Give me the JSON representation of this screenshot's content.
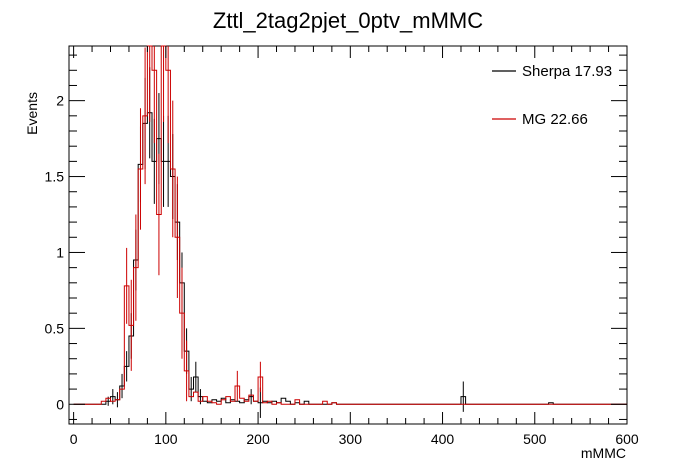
{
  "chart_data": {
    "type": "line",
    "title": "Zttl_2tag2pjet_0ptv_mMMC",
    "xlabel": "mMMC",
    "ylabel": "Events",
    "xlim": [
      -5,
      600
    ],
    "ylim": [
      -0.13,
      2.36
    ],
    "xticks": [
      0,
      100,
      200,
      300,
      400,
      500,
      600
    ],
    "yticks": [
      0,
      0.5,
      1,
      1.5,
      2
    ],
    "xtick_labels": [
      "0",
      "100",
      "200",
      "300",
      "400",
      "500",
      "600"
    ],
    "ytick_labels": [
      "0",
      "0.5",
      "1",
      "1.5",
      "2"
    ],
    "bin_width": 5,
    "legend_position": "top-right",
    "series": [
      {
        "name": "Sherpa 17.93",
        "color": "#000000",
        "bins": [
          [
            35,
            0.02
          ],
          [
            40,
            0.05
          ],
          [
            45,
            0.03
          ],
          [
            50,
            0.12
          ],
          [
            55,
            0.25
          ],
          [
            60,
            0.45
          ],
          [
            65,
            0.95
          ],
          [
            70,
            1.58
          ],
          [
            75,
            1.85
          ],
          [
            80,
            1.92
          ],
          [
            85,
            1.6
          ],
          [
            90,
            1.75
          ],
          [
            95,
            1.6
          ],
          [
            100,
            1.6
          ],
          [
            105,
            1.5
          ],
          [
            110,
            1.2
          ],
          [
            115,
            0.8
          ],
          [
            120,
            0.35
          ],
          [
            125,
            0.1
          ],
          [
            130,
            0.18
          ],
          [
            135,
            0.05
          ],
          [
            140,
            0.02
          ],
          [
            145,
            0.01
          ],
          [
            150,
            0.03
          ],
          [
            155,
            0.02
          ],
          [
            160,
            0.04
          ],
          [
            165,
            0.01
          ],
          [
            170,
            0.03
          ],
          [
            175,
            0.02
          ],
          [
            180,
            0.01
          ],
          [
            185,
            0.03
          ],
          [
            190,
            0.05
          ],
          [
            195,
            0.02
          ],
          [
            200,
            0.01
          ],
          [
            205,
            0.02
          ],
          [
            210,
            0.01
          ],
          [
            215,
            0.02
          ],
          [
            220,
            0.01
          ],
          [
            225,
            0.04
          ],
          [
            230,
            0.02
          ],
          [
            240,
            0.01
          ],
          [
            250,
            0.02
          ],
          [
            280,
            0.01
          ],
          [
            420,
            0.05
          ],
          [
            515,
            0.01
          ]
        ],
        "errors": [
          [
            35,
            0.03
          ],
          [
            40,
            0.05
          ],
          [
            45,
            0.05
          ],
          [
            50,
            0.08
          ],
          [
            55,
            0.1
          ],
          [
            60,
            0.15
          ],
          [
            65,
            0.2
          ],
          [
            70,
            0.25
          ],
          [
            75,
            0.3
          ],
          [
            80,
            0.3
          ],
          [
            85,
            0.28
          ],
          [
            90,
            0.3
          ],
          [
            95,
            0.3
          ],
          [
            100,
            0.3
          ],
          [
            105,
            0.28
          ],
          [
            110,
            0.25
          ],
          [
            115,
            0.2
          ],
          [
            120,
            0.15
          ],
          [
            125,
            0.08
          ],
          [
            130,
            0.1
          ],
          [
            135,
            0.05
          ],
          [
            190,
            0.05
          ],
          [
            200,
            0.1
          ],
          [
            420,
            0.1
          ]
        ]
      },
      {
        "name": "MG 22.66",
        "color": "#cc0000",
        "bins": [
          [
            30,
            0.02
          ],
          [
            35,
            0.04
          ],
          [
            40,
            0.02
          ],
          [
            45,
            0.03
          ],
          [
            50,
            0.1
          ],
          [
            55,
            0.78
          ],
          [
            60,
            0.52
          ],
          [
            65,
            0.9
          ],
          [
            70,
            1.55
          ],
          [
            75,
            1.9
          ],
          [
            80,
            2.36
          ],
          [
            85,
            2.2
          ],
          [
            90,
            1.25
          ],
          [
            95,
            2.36
          ],
          [
            100,
            2.2
          ],
          [
            105,
            1.55
          ],
          [
            110,
            1.1
          ],
          [
            115,
            0.6
          ],
          [
            120,
            0.22
          ],
          [
            125,
            0.05
          ],
          [
            130,
            0.08
          ],
          [
            135,
            0.02
          ],
          [
            140,
            0.05
          ],
          [
            145,
            0.02
          ],
          [
            150,
            0.01
          ],
          [
            160,
            0.03
          ],
          [
            165,
            0.05
          ],
          [
            170,
            0.02
          ],
          [
            175,
            0.12
          ],
          [
            180,
            0.04
          ],
          [
            185,
            0.02
          ],
          [
            190,
            0.06
          ],
          [
            195,
            0.02
          ],
          [
            200,
            0.18
          ],
          [
            205,
            0.01
          ],
          [
            210,
            0.02
          ],
          [
            220,
            0.01
          ],
          [
            240,
            0.03
          ],
          [
            270,
            0.02
          ],
          [
            280,
            0.01
          ]
        ],
        "errors": [
          [
            55,
            0.25
          ],
          [
            60,
            0.3
          ],
          [
            65,
            0.35
          ],
          [
            70,
            0.4
          ],
          [
            75,
            0.45
          ],
          [
            80,
            0.5
          ],
          [
            85,
            0.48
          ],
          [
            90,
            0.4
          ],
          [
            95,
            0.5
          ],
          [
            100,
            0.48
          ],
          [
            105,
            0.45
          ],
          [
            110,
            0.4
          ],
          [
            115,
            0.3
          ],
          [
            120,
            0.2
          ],
          [
            175,
            0.1
          ],
          [
            200,
            0.1
          ]
        ]
      }
    ]
  }
}
